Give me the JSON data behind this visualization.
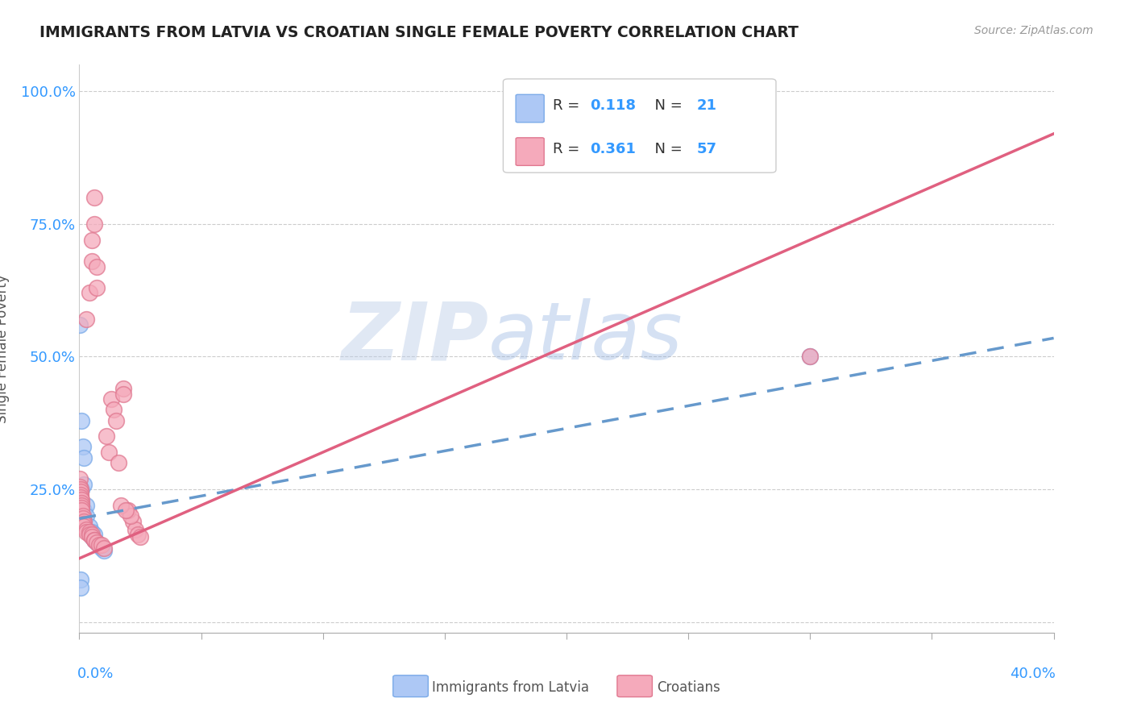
{
  "title": "IMMIGRANTS FROM LATVIA VS CROATIAN SINGLE FEMALE POVERTY CORRELATION CHART",
  "source": "Source: ZipAtlas.com",
  "ylabel": "Single Female Poverty",
  "color_latvia": "#adc8f5",
  "color_latvia_edge": "#7aaae8",
  "color_croatian": "#f5aabb",
  "color_croatian_edge": "#e07890",
  "color_latvia_line": "#6699cc",
  "color_croatian_line": "#e06080",
  "watermark_zip": "ZIP",
  "watermark_atlas": "atlas",
  "legend_r1": "0.118",
  "legend_n1": "21",
  "legend_r2": "0.361",
  "legend_n2": "57",
  "latvia_points": [
    [
      0.0003,
      0.56
    ],
    [
      0.0008,
      0.38
    ],
    [
      0.0015,
      0.33
    ],
    [
      0.0018,
      0.31
    ],
    [
      0.001,
      0.25
    ],
    [
      0.002,
      0.26
    ],
    [
      0.002,
      0.21
    ],
    [
      0.003,
      0.22
    ],
    [
      0.003,
      0.2
    ],
    [
      0.004,
      0.18
    ],
    [
      0.005,
      0.17
    ],
    [
      0.005,
      0.16
    ],
    [
      0.006,
      0.165
    ],
    [
      0.006,
      0.155
    ],
    [
      0.007,
      0.15
    ],
    [
      0.008,
      0.145
    ],
    [
      0.009,
      0.14
    ],
    [
      0.01,
      0.135
    ],
    [
      0.0005,
      0.08
    ],
    [
      0.0005,
      0.065
    ],
    [
      0.3,
      0.5
    ]
  ],
  "croatian_points": [
    [
      0.0002,
      0.27
    ],
    [
      0.0002,
      0.25
    ],
    [
      0.0003,
      0.255
    ],
    [
      0.0003,
      0.24
    ],
    [
      0.0004,
      0.25
    ],
    [
      0.0004,
      0.235
    ],
    [
      0.0005,
      0.245
    ],
    [
      0.0005,
      0.23
    ],
    [
      0.0006,
      0.24
    ],
    [
      0.0006,
      0.235
    ],
    [
      0.0007,
      0.23
    ],
    [
      0.0008,
      0.225
    ],
    [
      0.001,
      0.22
    ],
    [
      0.001,
      0.215
    ],
    [
      0.001,
      0.21
    ],
    [
      0.0015,
      0.2
    ],
    [
      0.0015,
      0.195
    ],
    [
      0.002,
      0.19
    ],
    [
      0.002,
      0.185
    ],
    [
      0.002,
      0.18
    ],
    [
      0.003,
      0.175
    ],
    [
      0.003,
      0.17
    ],
    [
      0.004,
      0.17
    ],
    [
      0.004,
      0.165
    ],
    [
      0.005,
      0.165
    ],
    [
      0.005,
      0.16
    ],
    [
      0.006,
      0.155
    ],
    [
      0.006,
      0.155
    ],
    [
      0.007,
      0.15
    ],
    [
      0.008,
      0.145
    ],
    [
      0.009,
      0.145
    ],
    [
      0.01,
      0.14
    ],
    [
      0.011,
      0.35
    ],
    [
      0.012,
      0.32
    ],
    [
      0.013,
      0.42
    ],
    [
      0.014,
      0.4
    ],
    [
      0.015,
      0.38
    ],
    [
      0.016,
      0.3
    ],
    [
      0.018,
      0.44
    ],
    [
      0.018,
      0.43
    ],
    [
      0.003,
      0.57
    ],
    [
      0.004,
      0.62
    ],
    [
      0.005,
      0.68
    ],
    [
      0.005,
      0.72
    ],
    [
      0.006,
      0.75
    ],
    [
      0.006,
      0.8
    ],
    [
      0.007,
      0.67
    ],
    [
      0.007,
      0.63
    ],
    [
      0.022,
      0.19
    ],
    [
      0.023,
      0.175
    ],
    [
      0.024,
      0.165
    ],
    [
      0.025,
      0.16
    ],
    [
      0.02,
      0.21
    ],
    [
      0.021,
      0.2
    ],
    [
      0.017,
      0.22
    ],
    [
      0.019,
      0.21
    ],
    [
      0.3,
      0.5
    ]
  ],
  "xlim": [
    0.0,
    0.4
  ],
  "ylim": [
    -0.02,
    1.05
  ],
  "xtick_positions": [
    0.0,
    0.05,
    0.1,
    0.15,
    0.2,
    0.25,
    0.3,
    0.35,
    0.4
  ],
  "ytick_positions": [
    0.0,
    0.25,
    0.5,
    0.75,
    1.0
  ],
  "ytick_labels": [
    "",
    "25.0%",
    "50.0%",
    "75.0%",
    "100.0%"
  ],
  "lv_line": [
    0.0,
    0.195,
    0.4,
    0.535
  ],
  "cr_line": [
    0.0,
    0.12,
    0.4,
    0.92
  ],
  "figsize": [
    14.06,
    8.92
  ],
  "dpi": 100
}
